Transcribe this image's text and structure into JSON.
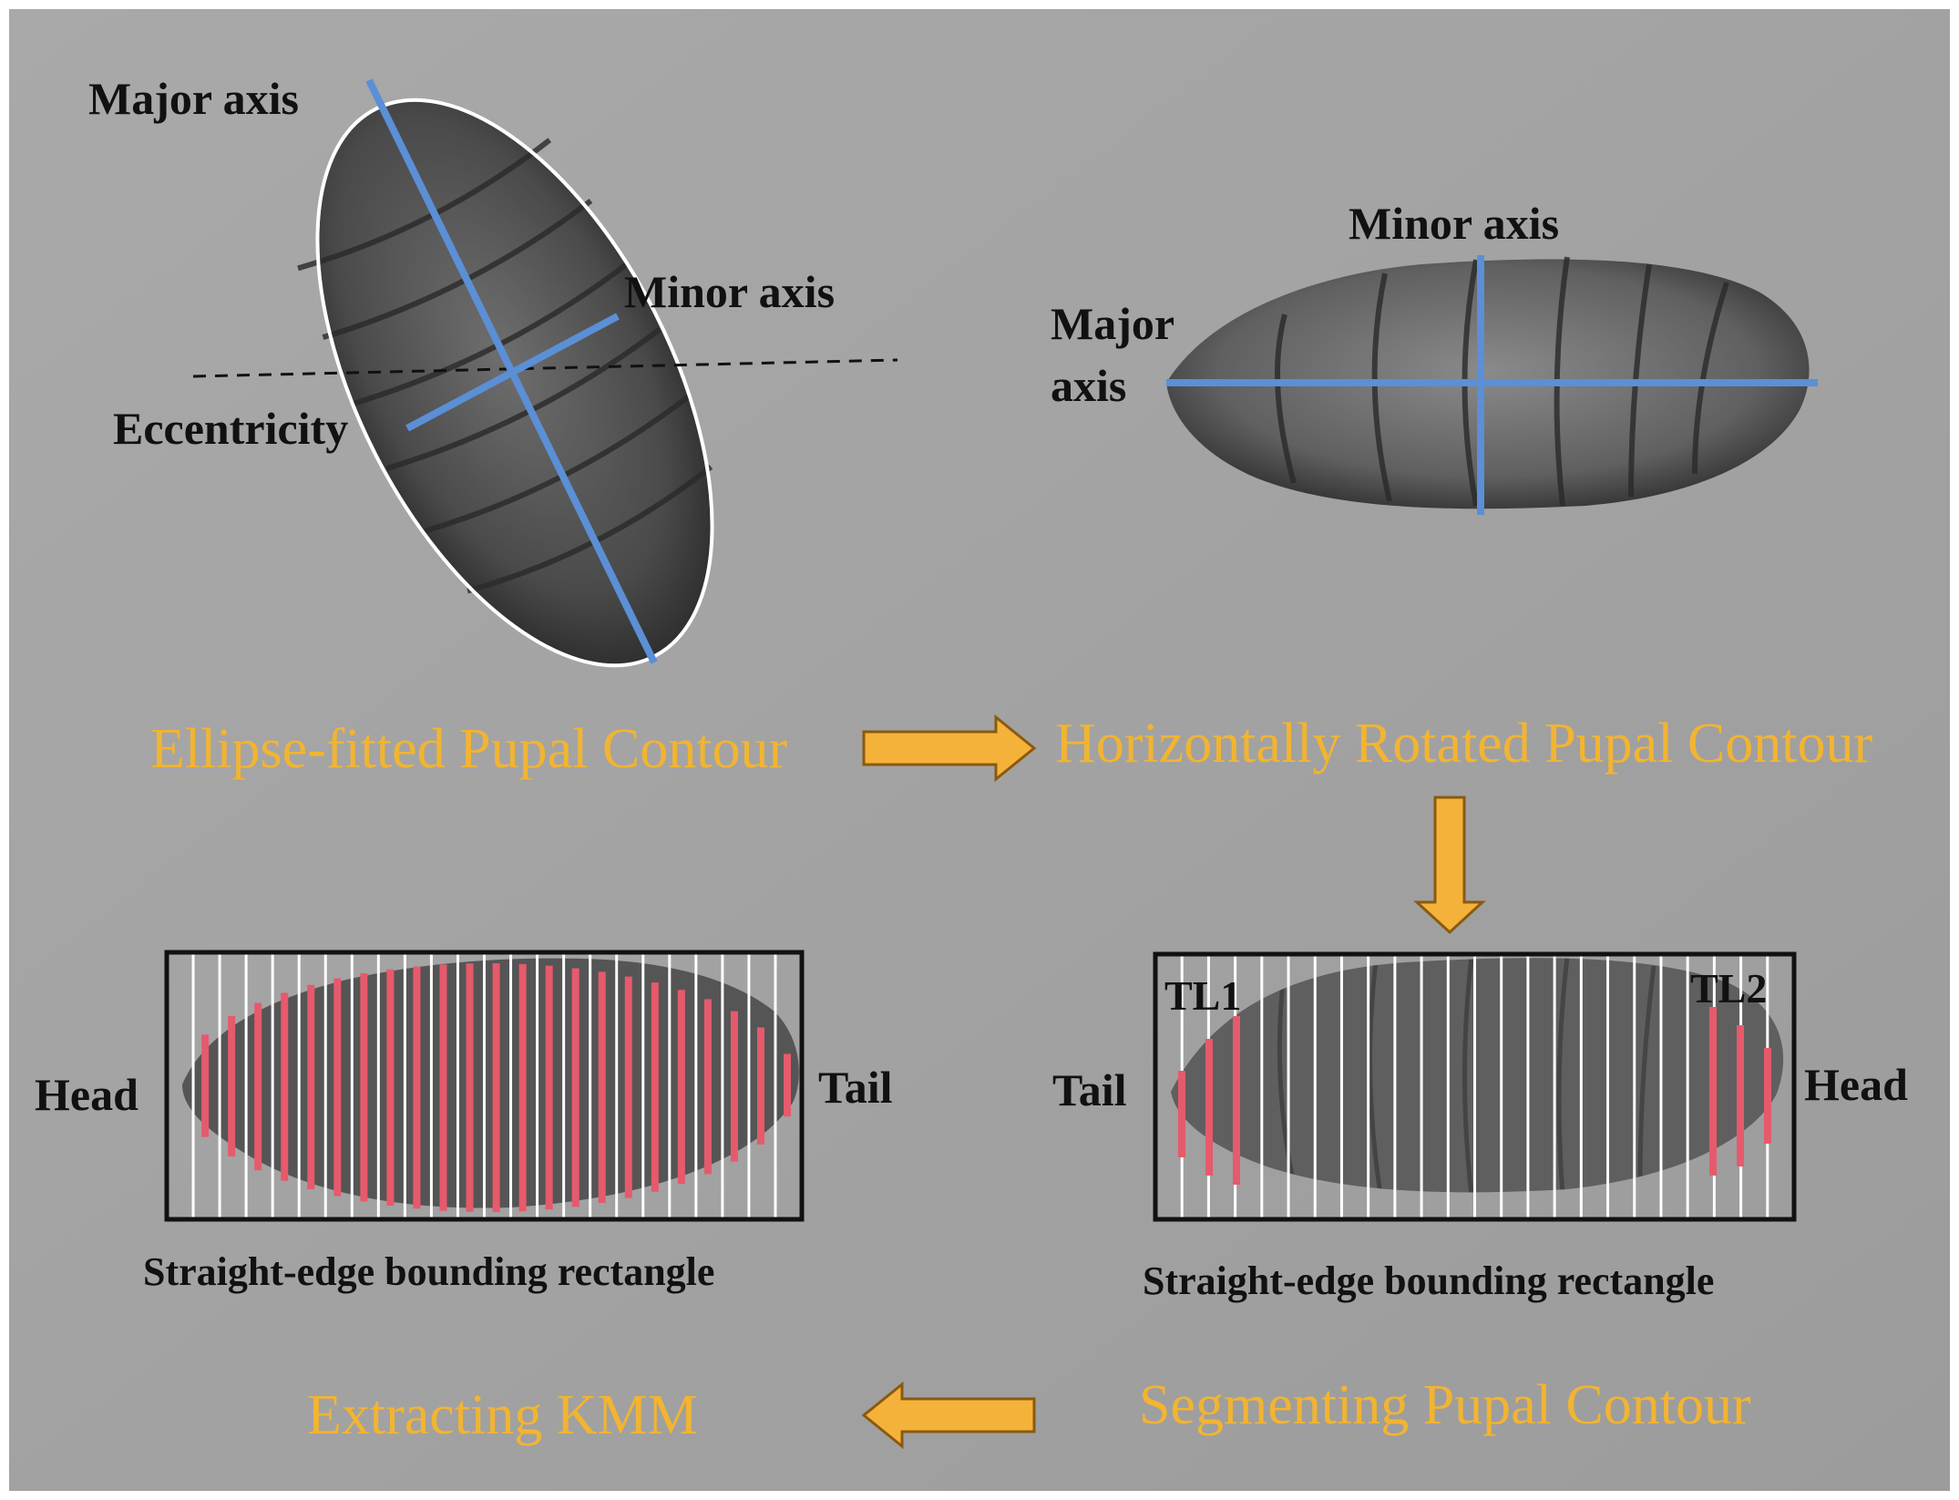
{
  "panel_1": {
    "major_axis": "Major axis",
    "minor_axis": "Minor axis",
    "eccentricity": "Eccentricity",
    "stage": "Ellipse-fitted Pupal Contour"
  },
  "panel_2": {
    "minor_axis": "Minor axis",
    "major_axis_line1": "Major",
    "major_axis_line2": "axis",
    "stage": "Horizontally Rotated Pupal Contour"
  },
  "panel_3": {
    "tail": "Tail",
    "head": "Head",
    "tl1": "TL1",
    "tl2": "TL2",
    "caption": "Straight-edge bounding rectangle",
    "stage": "Segmenting Pupal Contour"
  },
  "panel_4": {
    "head": "Head",
    "tail": "Tail",
    "caption": "Straight-edge bounding rectangle",
    "stage": "Extracting KMM"
  },
  "colors": {
    "background": "#a3a3a3",
    "axis_line": "#5b8fd6",
    "stage_text": "#f2b431",
    "arrow_fill": "#f5b23a",
    "segment_red": "#e65a6c",
    "segment_white": "#ffffff"
  }
}
